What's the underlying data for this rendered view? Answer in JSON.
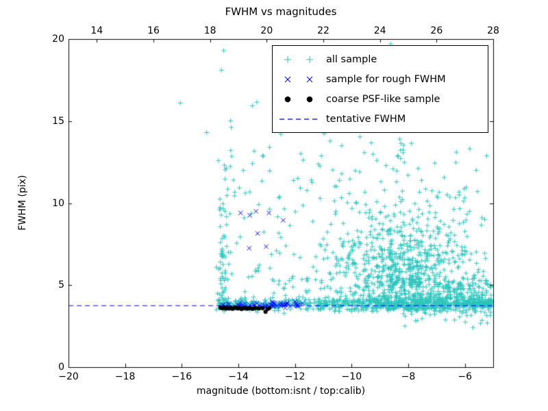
{
  "chart_data": {
    "type": "scatter",
    "title": "FWHM vs magnitudes",
    "xlabel": "magnitude (bottom:isnt / top:calib)",
    "ylabel": "FWHM (pix)",
    "seed": 1337,
    "x_axis_bottom": {
      "name": "isnt magnitude",
      "range": [
        -20,
        -5
      ],
      "tick_values": [
        -20,
        -18,
        -16,
        -14,
        -12,
        -10,
        -8,
        -6
      ],
      "tick_labels": [
        "−20",
        "−18",
        "−16",
        "−14",
        "−12",
        "−10",
        "−8",
        "−6"
      ]
    },
    "x_axis_top": {
      "name": "calib magnitude",
      "range": [
        13,
        28
      ],
      "calib_offset": 33,
      "tick_values": [
        14,
        16,
        18,
        20,
        22,
        24,
        26,
        28
      ],
      "tick_labels": [
        "14",
        "16",
        "18",
        "20",
        "22",
        "24",
        "26",
        "28"
      ]
    },
    "y_axis": {
      "range": [
        0,
        20
      ],
      "tick_values": [
        0,
        5,
        10,
        15,
        20
      ],
      "tick_labels": [
        "0",
        "5",
        "10",
        "15",
        "20"
      ]
    },
    "tentative_fwhm": 3.75,
    "series": [
      {
        "name": "all sample",
        "marker": "plus",
        "color": "#2cc5bd",
        "clusters": [
          {
            "type": "band",
            "count": 620,
            "xmin": -14.78,
            "xmax": -5.05,
            "xpow": 1.35,
            "ymean": 3.85,
            "ysd": 0.2
          },
          {
            "type": "band",
            "count": 200,
            "xmin": -8.2,
            "xmax": -5.05,
            "xpow": 1.0,
            "ymean": 4.35,
            "ysd": 0.75
          },
          {
            "type": "cloud",
            "count": 850,
            "cx": -8.35,
            "sx": 1.25,
            "xmin": -11.9,
            "xmax": -5.1,
            "ybase": 3.4,
            "ysd": 3.1,
            "apex": 15.2,
            "slope": 2.0
          },
          {
            "type": "stripe",
            "count": 75,
            "cx": -14.55,
            "sx": 0.12,
            "ybase": 3.6,
            "ysd": 4.5,
            "ymax": 19.4
          },
          {
            "type": "sparse",
            "count": 120,
            "xmin": -14.35,
            "xmax": -10.2,
            "ymin": 3.9,
            "ymax": 16.2,
            "pow": 2.2
          },
          {
            "type": "sparse",
            "count": 110,
            "xmin": -10.8,
            "xmax": -5.2,
            "ymin": 6.5,
            "ymax": 16.0,
            "pow": 1.6
          }
        ],
        "points": [
          [
            -16.05,
            16.1
          ],
          [
            -15.12,
            14.3
          ],
          [
            -14.52,
            19.3
          ],
          [
            -14.6,
            18.1
          ],
          [
            -13.35,
            16.15
          ],
          [
            -12.9,
            13.4
          ],
          [
            -12.5,
            14.2
          ],
          [
            -11.9,
            11.5
          ],
          [
            -10.35,
            13.5
          ],
          [
            -9.35,
            15.5
          ],
          [
            -8.62,
            19.7
          ],
          [
            -7.85,
            18.9
          ],
          [
            -8.3,
            17.4
          ],
          [
            -6.3,
            13.1
          ],
          [
            -5.6,
            12.0
          ],
          [
            -5.3,
            9.0
          ]
        ]
      },
      {
        "name": "sample for rough FWHM",
        "marker": "x",
        "color": "#0000ff",
        "clusters": [
          {
            "type": "band",
            "count": 55,
            "xmin": -14.6,
            "xmax": -11.72,
            "xpow": 1.0,
            "ymean": 3.78,
            "ysd": 0.09
          }
        ],
        "points": [
          [
            -13.92,
            9.4
          ],
          [
            -13.6,
            9.25
          ],
          [
            -13.38,
            9.5
          ],
          [
            -12.92,
            9.4
          ],
          [
            -13.32,
            8.15
          ],
          [
            -13.62,
            7.25
          ],
          [
            -13.02,
            7.35
          ],
          [
            -12.42,
            8.95
          ]
        ]
      },
      {
        "name": "coarse PSF-like sample",
        "marker": "dot",
        "color": "#000000",
        "clusters": [],
        "points": [
          [
            -14.63,
            3.62
          ],
          [
            -14.56,
            3.59
          ],
          [
            -14.5,
            3.63
          ],
          [
            -14.44,
            3.57
          ],
          [
            -14.39,
            3.61
          ],
          [
            -14.33,
            3.58
          ],
          [
            -14.27,
            3.62
          ],
          [
            -14.21,
            3.56
          ],
          [
            -14.15,
            3.6
          ],
          [
            -14.09,
            3.63
          ],
          [
            -14.02,
            3.58
          ],
          [
            -13.96,
            3.61
          ],
          [
            -13.89,
            3.55
          ],
          [
            -13.82,
            3.6
          ],
          [
            -13.75,
            3.62
          ],
          [
            -13.68,
            3.57
          ],
          [
            -13.6,
            3.6
          ],
          [
            -13.5,
            3.56
          ],
          [
            -13.4,
            3.61
          ],
          [
            -13.28,
            3.58
          ],
          [
            -13.15,
            3.6
          ],
          [
            -13.04,
            3.38
          ],
          [
            -12.97,
            3.55
          ],
          [
            -12.91,
            3.6
          ]
        ]
      },
      {
        "name": "tentative FWHM",
        "marker": "dashed-line",
        "color": "#0000ff",
        "y": 3.75
      }
    ]
  },
  "legend": {
    "items": [
      {
        "label": "all sample",
        "marker": "plus",
        "color": "#2cc5bd"
      },
      {
        "label": "sample for rough FWHM",
        "marker": "x",
        "color": "#0000ff"
      },
      {
        "label": "coarse PSF-like sample",
        "marker": "dot",
        "color": "#000000"
      },
      {
        "label": "tentative FWHM",
        "marker": "dashed-line",
        "color": "#0000ff"
      }
    ]
  }
}
